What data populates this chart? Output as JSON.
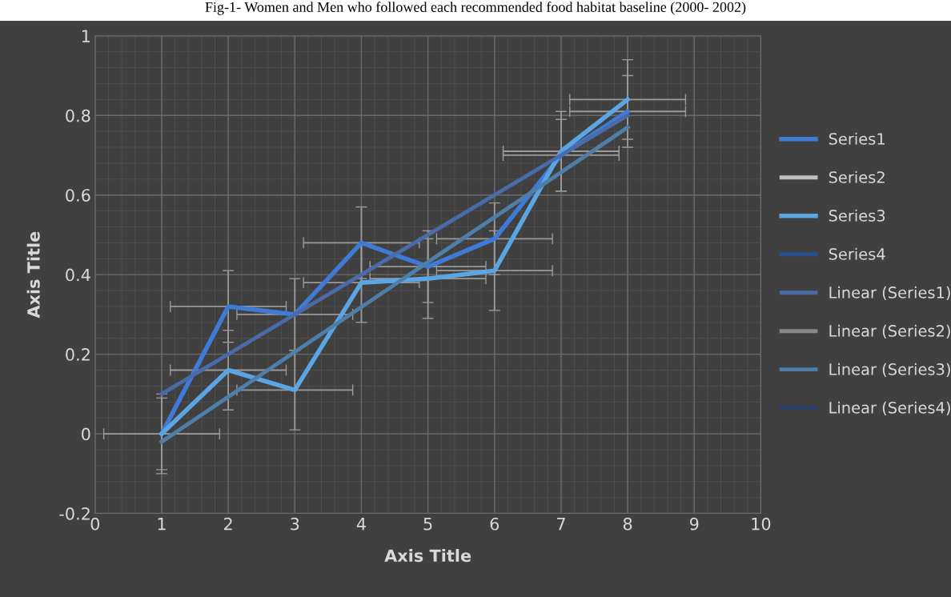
{
  "chart_data": {
    "type": "line",
    "title": "Fig-1- Women and Men who followed each recommended food habitat baseline (2000- 2002)",
    "xlabel": "Axis Title",
    "ylabel": "Axis Title",
    "xlim": [
      0,
      10
    ],
    "xticks": [
      0,
      1,
      2,
      3,
      4,
      5,
      6,
      7,
      8,
      9,
      10
    ],
    "ylim": [
      -0.2,
      1
    ],
    "yticks": [
      -0.2,
      0,
      0.2,
      0.4,
      0.6,
      0.8,
      1
    ],
    "grid": true,
    "legend": "right",
    "marker": "none",
    "line_style": "solid",
    "series": [
      {
        "name": "Series1",
        "color": "#3f7bd6",
        "x": [
          1,
          2,
          3,
          4,
          5,
          6,
          7,
          8
        ],
        "values": [
          0,
          0.32,
          0.3,
          0.48,
          0.42,
          0.49,
          0.7,
          0.81
        ],
        "errors": [
          0.09,
          0.09,
          0.09,
          0.09,
          0.09,
          0.09,
          0.09,
          0.09
        ],
        "xerrors": [
          0.87,
          0.87,
          0.87,
          0.87,
          0.87,
          0.87,
          0.87,
          0.87
        ]
      },
      {
        "name": "Series2",
        "color": "#bfbfbf",
        "values": [
          null,
          null,
          null,
          null,
          null,
          null,
          null,
          null
        ]
      },
      {
        "name": "Series3",
        "color": "#5ba5e3",
        "x": [
          1,
          2,
          3,
          4,
          5,
          6,
          7,
          8
        ],
        "values": [
          0,
          0.16,
          0.11,
          0.38,
          0.39,
          0.41,
          0.71,
          0.84
        ],
        "errors": [
          0.1,
          0.1,
          0.1,
          0.1,
          0.1,
          0.1,
          0.1,
          0.1
        ],
        "xerrors": [
          null,
          0.87,
          0.87,
          0.87,
          0.87,
          0.87,
          0.87,
          0.87
        ]
      },
      {
        "name": "Series4",
        "color": "#264f8f",
        "values": [
          null,
          null,
          null,
          null,
          null,
          null,
          null,
          null
        ]
      },
      {
        "name": "Linear (Series1)",
        "color": "#4a6aa8",
        "x": [
          1,
          8
        ],
        "values": [
          0.1,
          0.8
        ]
      },
      {
        "name": "Linear (Series2)",
        "color": "#8a8a8a",
        "values": [
          null,
          null
        ]
      },
      {
        "name": "Linear (Series3)",
        "color": "#4f7ea8",
        "x": [
          1,
          8
        ],
        "values": [
          -0.02,
          0.77
        ]
      },
      {
        "name": "Linear (Series4)",
        "color": "#2c426e",
        "values": [
          null,
          null
        ]
      }
    ]
  }
}
